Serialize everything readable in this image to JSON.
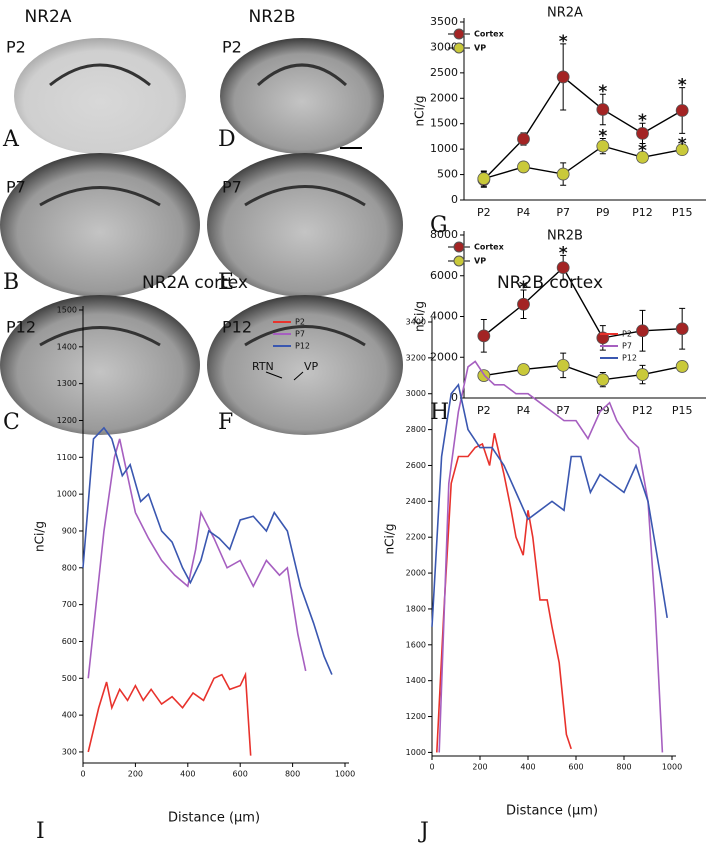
{
  "image_panels": {
    "column_titles": [
      "NR2A",
      "NR2B"
    ],
    "panels": [
      {
        "letter": "A",
        "age": "P2"
      },
      {
        "letter": "B",
        "age": "P7"
      },
      {
        "letter": "C",
        "age": "P12"
      },
      {
        "letter": "D",
        "age": "P2"
      },
      {
        "letter": "E",
        "age": "P7"
      },
      {
        "letter": "F",
        "age": "P12"
      }
    ],
    "region_labels": [
      "RTN",
      "VP"
    ]
  },
  "chart_data": [
    {
      "type": "line",
      "panel_label": "G",
      "title": "NR2A",
      "y_label": "nCi/g",
      "categories": [
        "P2",
        "P4",
        "P7",
        "P9",
        "P12",
        "P15"
      ],
      "ylim": [
        0,
        3500
      ],
      "yticks": [
        0,
        500,
        1000,
        1500,
        2000,
        2500,
        3000,
        3500
      ],
      "legend": "upper left",
      "series": [
        {
          "name": "Cortex",
          "color": "#a32424",
          "values": [
            400,
            1200,
            2420,
            1780,
            1310,
            1760
          ],
          "errors": [
            150,
            120,
            650,
            300,
            200,
            450
          ]
        },
        {
          "name": "VP",
          "color": "#c9c93a",
          "values": [
            420,
            650,
            510,
            1060,
            840,
            990
          ],
          "errors": [
            150,
            50,
            220,
            150,
            80,
            60
          ]
        }
      ],
      "annotations": [
        {
          "text": "*",
          "series": "Cortex",
          "category": "P7"
        },
        {
          "text": "*",
          "series": "Cortex",
          "category": "P9"
        },
        {
          "text": "*",
          "series": "Cortex",
          "category": "P12"
        },
        {
          "text": "*",
          "series": "Cortex",
          "category": "P15"
        },
        {
          "text": "*",
          "series": "VP",
          "category": "P9"
        },
        {
          "text": "*",
          "series": "VP",
          "category": "P12"
        },
        {
          "text": "*",
          "series": "VP",
          "category": "P15"
        }
      ]
    },
    {
      "type": "line",
      "panel_label": "H",
      "title": "NR2B",
      "y_label": "nCi/g",
      "categories": [
        "P2",
        "P4",
        "P7",
        "P9",
        "P12",
        "P15"
      ],
      "ylim": [
        0,
        8000
      ],
      "yticks": [
        0,
        2000,
        4000,
        6000,
        8000
      ],
      "legend": "upper left",
      "series": [
        {
          "name": "Cortex",
          "color": "#a32424",
          "values": [
            3050,
            4600,
            6400,
            2950,
            3300,
            3400
          ],
          "errors": [
            800,
            700,
            600,
            600,
            1000,
            1000
          ]
        },
        {
          "name": "VP",
          "color": "#c9c93a",
          "values": [
            1100,
            1400,
            1600,
            900,
            1150,
            1550
          ],
          "errors": [
            100,
            100,
            600,
            350,
            450,
            250
          ]
        }
      ],
      "annotations": [
        {
          "text": "*",
          "series": "Cortex",
          "category": "P4"
        },
        {
          "text": "*",
          "series": "Cortex",
          "category": "P7"
        }
      ]
    },
    {
      "type": "profile",
      "panel_label": "I",
      "title": "NR2A cortex",
      "x_label": "Distance (µm)",
      "y_label": "nCi/g",
      "xlim": [
        0,
        1000
      ],
      "xticks": [
        0,
        200,
        400,
        600,
        800,
        1000
      ],
      "ylim": [
        270,
        1500
      ],
      "yticks": [
        300,
        400,
        500,
        600,
        700,
        800,
        900,
        1000,
        1100,
        1200,
        1300,
        1400,
        1500
      ],
      "legend": "upper right",
      "series": [
        {
          "name": "P2",
          "color": "#e8322c",
          "x": [
            20,
            60,
            90,
            110,
            140,
            170,
            200,
            230,
            260,
            300,
            340,
            380,
            420,
            460,
            500,
            530,
            560,
            600,
            620,
            630,
            640
          ],
          "values": [
            300,
            420,
            490,
            420,
            470,
            440,
            480,
            440,
            470,
            430,
            450,
            420,
            460,
            440,
            500,
            510,
            470,
            480,
            510,
            400,
            290
          ]
        },
        {
          "name": "P7",
          "color": "#a65fc0",
          "x": [
            20,
            80,
            120,
            140,
            200,
            250,
            300,
            350,
            400,
            430,
            450,
            500,
            550,
            600,
            650,
            700,
            750,
            780,
            820,
            850
          ],
          "values": [
            500,
            900,
            1100,
            1150,
            950,
            880,
            820,
            780,
            750,
            850,
            950,
            880,
            800,
            820,
            750,
            820,
            780,
            800,
            620,
            520
          ]
        },
        {
          "name": "P12",
          "color": "#3a57b0",
          "x": [
            0,
            40,
            80,
            110,
            150,
            180,
            220,
            250,
            300,
            340,
            380,
            410,
            450,
            480,
            520,
            560,
            600,
            650,
            700,
            730,
            780,
            830,
            880,
            920,
            950
          ],
          "values": [
            800,
            1150,
            1180,
            1150,
            1050,
            1080,
            980,
            1000,
            900,
            870,
            800,
            760,
            820,
            900,
            880,
            850,
            930,
            940,
            900,
            950,
            900,
            750,
            650,
            560,
            510
          ]
        }
      ]
    },
    {
      "type": "profile",
      "panel_label": "J",
      "title": "NR2B cortex",
      "x_label": "Distance (µm)",
      "y_label": "nCi/g",
      "xlim": [
        0,
        1000
      ],
      "xticks": [
        0,
        200,
        400,
        600,
        800,
        1000
      ],
      "ylim": [
        980,
        3400
      ],
      "yticks": [
        1000,
        1200,
        1400,
        1600,
        1800,
        2000,
        2200,
        2400,
        2600,
        2800,
        3000,
        3200,
        3400
      ],
      "legend": "upper right",
      "series": [
        {
          "name": "P2",
          "color": "#e8322c",
          "x": [
            20,
            50,
            80,
            110,
            150,
            180,
            210,
            240,
            260,
            300,
            330,
            350,
            380,
            400,
            420,
            450,
            480,
            500,
            530,
            560,
            580
          ],
          "values": [
            1000,
            1800,
            2500,
            2650,
            2650,
            2700,
            2720,
            2600,
            2780,
            2550,
            2350,
            2200,
            2100,
            2350,
            2200,
            1850,
            1850,
            1700,
            1500,
            1100,
            1020
          ]
        },
        {
          "name": "P7",
          "color": "#a65fc0",
          "x": [
            30,
            70,
            110,
            150,
            180,
            220,
            260,
            300,
            350,
            400,
            450,
            500,
            550,
            600,
            650,
            700,
            740,
            770,
            820,
            860,
            900,
            930,
            960
          ],
          "values": [
            1000,
            2500,
            2900,
            3150,
            3180,
            3100,
            3050,
            3050,
            3000,
            3000,
            2950,
            2900,
            2850,
            2850,
            2750,
            2900,
            2950,
            2850,
            2750,
            2700,
            2400,
            1800,
            1000
          ]
        },
        {
          "name": "P12",
          "color": "#3a57b0",
          "x": [
            0,
            40,
            80,
            110,
            150,
            200,
            250,
            300,
            350,
            400,
            450,
            500,
            550,
            580,
            620,
            660,
            700,
            750,
            800,
            850,
            900,
            950,
            980
          ],
          "values": [
            1700,
            2650,
            3000,
            3050,
            2800,
            2700,
            2700,
            2600,
            2450,
            2300,
            2350,
            2400,
            2350,
            2650,
            2650,
            2450,
            2550,
            2500,
            2450,
            2600,
            2400,
            2000,
            1750
          ]
        }
      ]
    }
  ]
}
